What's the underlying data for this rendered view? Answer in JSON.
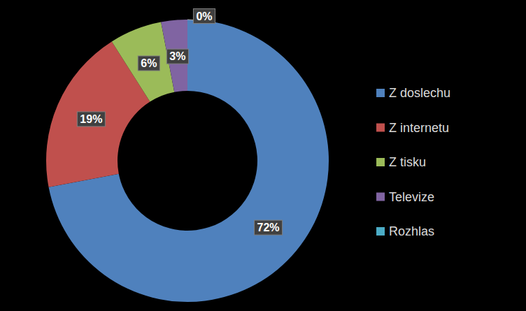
{
  "chart_data": {
    "type": "donut",
    "categories": [
      "Z doslechu",
      "Z internetu",
      "Z tisku",
      "Televize",
      "Rozhlas"
    ],
    "values": [
      72,
      19,
      6,
      3,
      0
    ],
    "value_labels": [
      "72%",
      "19%",
      "6%",
      "3%",
      "0%"
    ],
    "colors": [
      "#4f81bd",
      "#c0504d",
      "#9bbb59",
      "#8064a2",
      "#4bacc6"
    ],
    "data_labels": true,
    "legend": "right"
  }
}
